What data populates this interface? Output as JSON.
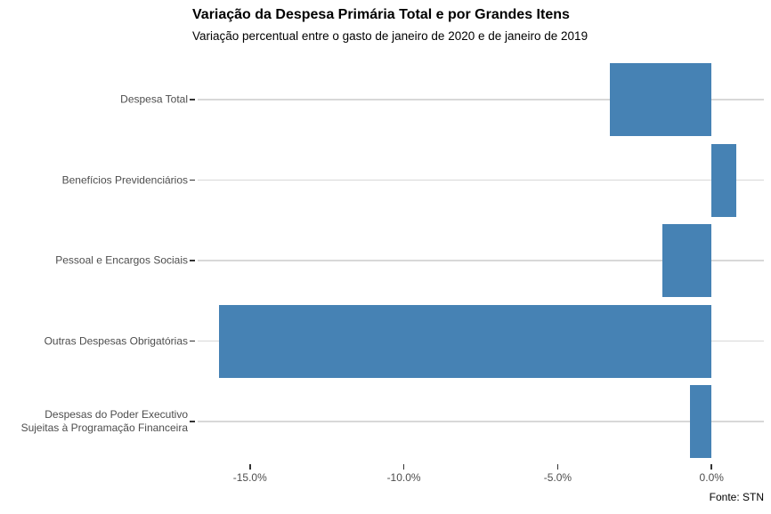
{
  "chart_data": {
    "type": "bar",
    "orientation": "horizontal",
    "title": "Variação da Despesa Primária Total e por Grandes Itens",
    "subtitle": "Variação percentual entre o gasto de janeiro de 2020 e de janeiro de 2019",
    "source": "Fonte: STN",
    "categories": [
      "Despesa Total",
      "Benefícios Previdenciários",
      "Pessoal e Encargos Sociais",
      "Outras Despesas Obrigatórias",
      "Despesas do Poder Executivo\nSujeitas à Programação Financeira"
    ],
    "values": [
      -3.3,
      0.8,
      -1.6,
      -16.0,
      -0.7
    ],
    "unit": "%",
    "xlabel": "",
    "ylabel": "",
    "x_ticks": [
      -15,
      -10,
      -5,
      0
    ],
    "x_tick_labels": [
      "-15.0%",
      "-10.0%",
      "-5.0%",
      "0.0%"
    ],
    "xlim": [
      -16.7,
      1.7
    ],
    "grid": "category-gridlines-only",
    "legend": "none"
  },
  "colors": {
    "bar": "#4682B4",
    "grid": "#D8D8D8",
    "axis_text": "#4D4D4D",
    "tick": "#333333",
    "title_text": "#000000",
    "background": "#FFFFFF"
  }
}
